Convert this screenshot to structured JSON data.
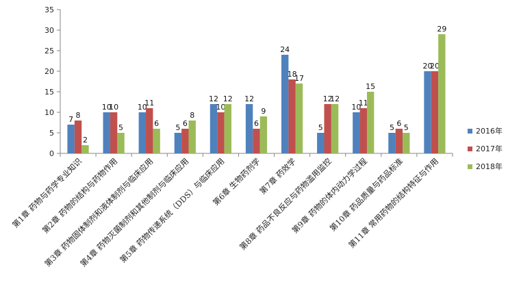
{
  "chart_data": {
    "type": "bar",
    "categories": [
      "第1章 药物与药学专业知识",
      "第2章 药物的结构与药物作用",
      "第3章 药物固体制剂和液体制剂与临床应用",
      "第4章 药物灭菌制剂和其他制剂与临床应用",
      "第5章 药物传递系统（DDS）与临床应用",
      "第6章 生物药剂学",
      "第7章 药效学",
      "第8章 药品不良反应与药物滥用监控",
      "第9章 药物的体内动力学过程",
      "第10章 药品质量与药品标准",
      "第11章 常用药物的结构特征与作用"
    ],
    "series": [
      {
        "name": "2016年",
        "color": "#4f81bd",
        "values": [
          7,
          10,
          10,
          5,
          12,
          12,
          24,
          5,
          10,
          5,
          20
        ]
      },
      {
        "name": "2017年",
        "color": "#c0504d",
        "values": [
          8,
          10,
          11,
          6,
          10,
          6,
          18,
          12,
          11,
          6,
          20
        ]
      },
      {
        "name": "2018年",
        "color": "#9bbb59",
        "values": [
          2,
          5,
          6,
          8,
          12,
          9,
          17,
          12,
          15,
          5,
          29
        ]
      }
    ],
    "ylim": [
      0,
      35
    ],
    "yticks": [
      0,
      5,
      10,
      15,
      20,
      25,
      30,
      35
    ],
    "grid": false,
    "legend_position": "right"
  }
}
